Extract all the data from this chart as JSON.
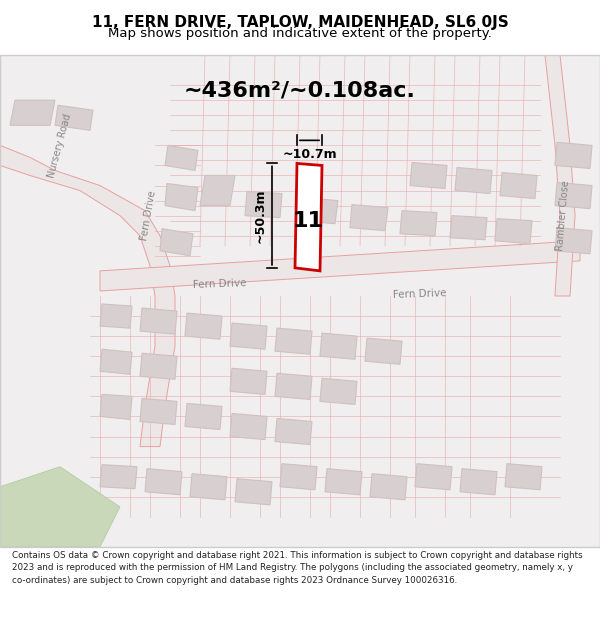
{
  "title_line1": "11, FERN DRIVE, TAPLOW, MAIDENHEAD, SL6 0JS",
  "title_line2": "Map shows position and indicative extent of the property.",
  "area_text": "~436m²/~0.108ac.",
  "property_number": "11",
  "dim_height": "~50.3m",
  "dim_width": "~10.7m",
  "footer_text": "Contains OS data © Crown copyright and database right 2021. This information is subject to Crown copyright and database rights 2023 and is reproduced with the permission of HM Land Registry. The polygons (including the associated geometry, namely x, y co-ordinates) are subject to Crown copyright and database rights 2023 Ordnance Survey 100026316.",
  "bg_color": "#f5f5f5",
  "map_bg": "#f0eeee",
  "road_color": "#e8a0a0",
  "road_fill": "#e8c8c8",
  "plot_color": "#cc0000",
  "plot_fill": "#ffffff",
  "building_color": "#d0c0c0",
  "building_fill": "#d8d0d0",
  "road_label_color": "#888888",
  "street_bg": "#e8e0e0",
  "annotation_color": "#000000",
  "green_fill": "#c8d8b8"
}
